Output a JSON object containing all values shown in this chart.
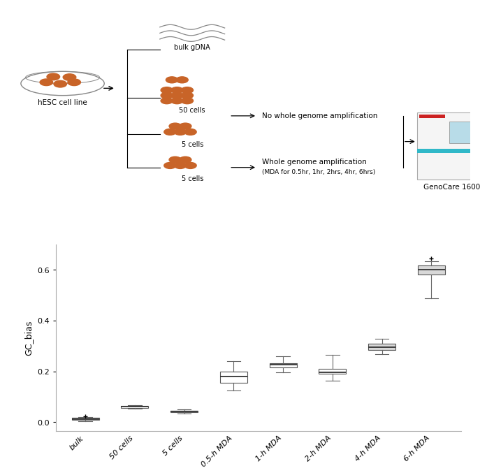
{
  "categories": [
    "bulk",
    "50 cells",
    "5 cells",
    "0.5-h MDA",
    "1-h MDA",
    "2-h MDA",
    "4-h MDA",
    "6-h MDA"
  ],
  "boxplot_stats": [
    {
      "whislo": 0.003,
      "q1": 0.008,
      "med": 0.012,
      "q3": 0.016,
      "whishi": 0.021,
      "fliers": [
        0.023
      ]
    },
    {
      "whislo": 0.053,
      "q1": 0.057,
      "med": 0.06,
      "q3": 0.063,
      "whishi": 0.066,
      "fliers": []
    },
    {
      "whislo": 0.035,
      "q1": 0.039,
      "med": 0.043,
      "q3": 0.046,
      "whishi": 0.049,
      "fliers": []
    },
    {
      "whislo": 0.125,
      "q1": 0.155,
      "med": 0.18,
      "q3": 0.2,
      "whishi": 0.24,
      "fliers": []
    },
    {
      "whislo": 0.195,
      "q1": 0.215,
      "med": 0.225,
      "q3": 0.232,
      "whishi": 0.26,
      "fliers": []
    },
    {
      "whislo": 0.162,
      "q1": 0.19,
      "med": 0.196,
      "q3": 0.21,
      "whishi": 0.265,
      "fliers": []
    },
    {
      "whislo": 0.268,
      "q1": 0.283,
      "med": 0.295,
      "q3": 0.308,
      "whishi": 0.327,
      "fliers": []
    },
    {
      "whislo": 0.488,
      "q1": 0.58,
      "med": 0.6,
      "q3": 0.618,
      "whishi": 0.633,
      "fliers": [
        0.645
      ]
    }
  ],
  "ylabel": "GC_bias",
  "ylim": [
    -0.035,
    0.7
  ],
  "yticks": [
    0.0,
    0.2,
    0.4,
    0.6
  ],
  "box_colors": [
    "#ffffff",
    "#ffffff",
    "#ffffff",
    "#ffffff",
    "#ffffff",
    "#ffffff",
    "#d8d8d8",
    "#d8d8d8"
  ],
  "edge_color": "#555555",
  "median_color": "#333333",
  "whisker_color": "#666666",
  "background_color": "#ffffff",
  "orange_color": "#C86428"
}
